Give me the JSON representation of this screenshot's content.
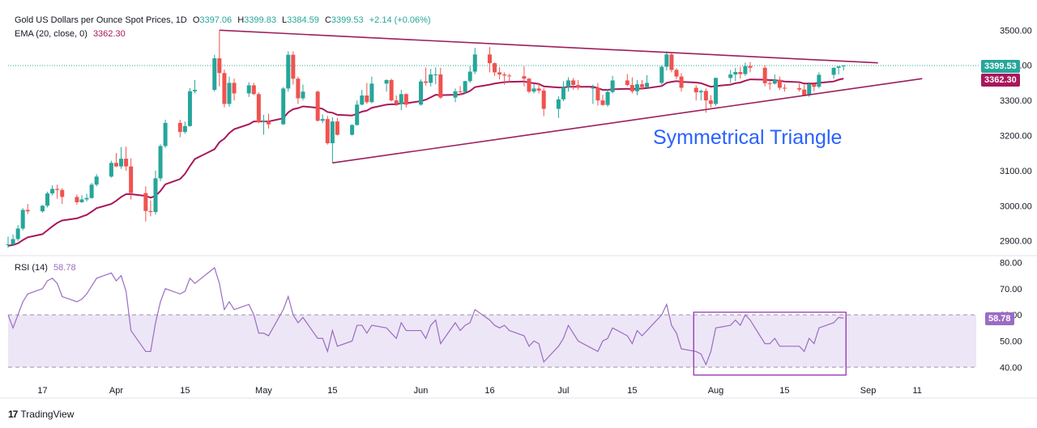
{
  "header": {
    "symbol": "Gold US Dollars per Ounce Spot Prices, 1D",
    "open_label": "O",
    "open": "3397.06",
    "high_label": "H",
    "high": "3399.83",
    "low_label": "L",
    "low": "3384.59",
    "close_label": "C",
    "close": "3399.53",
    "change": "+2.14 (+0.06%)",
    "ema_label": "EMA (20, close, 0)",
    "ema_value": "3362.30",
    "rsi_label": "RSI (14)",
    "rsi_value": "58.78"
  },
  "annotation": "Symmetrical Triangle",
  "brand": {
    "name": "TradingView",
    "logo_icon": "tradingview-logo-icon"
  },
  "colors": {
    "up": "#26a69a",
    "down": "#ef5350",
    "ema": "#a8175a",
    "trend": "#9c1f5b",
    "rsi": "#9b6cc3",
    "rsi_band": "#ede6f6",
    "annotation": "#2962ff",
    "price_tag": "#26a69a"
  },
  "price_axis_labels": [
    "3500.00",
    "3400.00",
    "3300.00",
    "3200.00",
    "3100.00",
    "3000.00",
    "2900.00"
  ],
  "rsi_axis_labels": [
    "80.00",
    "70.00",
    "60.00",
    "50.00",
    "40.00"
  ],
  "time_axis_labels": [
    "17",
    "Apr",
    "15",
    "May",
    "15",
    "Jun",
    "16",
    "Jul",
    "15",
    "Aug",
    "15",
    "Sep",
    "11"
  ],
  "chart_data": [
    {
      "type": "candlestick",
      "title": "Gold US Dollars per Ounce Spot Prices, 1D",
      "ylim": [
        2860,
        3540
      ],
      "x_start": "2025-03-10",
      "x": [
        "2025-03-10",
        "2025-03-11",
        "2025-03-12",
        "2025-03-13",
        "2025-03-14",
        "2025-03-17",
        "2025-03-18",
        "2025-03-19",
        "2025-03-20",
        "2025-03-21",
        "2025-03-24",
        "2025-03-25",
        "2025-03-26",
        "2025-03-27",
        "2025-03-28",
        "2025-03-31",
        "2025-04-01",
        "2025-04-02",
        "2025-04-03",
        "2025-04-04",
        "2025-04-07",
        "2025-04-08",
        "2025-04-09",
        "2025-04-10",
        "2025-04-11",
        "2025-04-14",
        "2025-04-15",
        "2025-04-16",
        "2025-04-17",
        "2025-04-21",
        "2025-04-22",
        "2025-04-23",
        "2025-04-24",
        "2025-04-25",
        "2025-04-28",
        "2025-04-29",
        "2025-04-30",
        "2025-05-01",
        "2025-05-02",
        "2025-05-05",
        "2025-05-06",
        "2025-05-07",
        "2025-05-08",
        "2025-05-09",
        "2025-05-12",
        "2025-05-13",
        "2025-05-14",
        "2025-05-15",
        "2025-05-16",
        "2025-05-19",
        "2025-05-20",
        "2025-05-21",
        "2025-05-22",
        "2025-05-23",
        "2025-05-26",
        "2025-05-27",
        "2025-05-28",
        "2025-05-29",
        "2025-05-30",
        "2025-06-02",
        "2025-06-03",
        "2025-06-04",
        "2025-06-05",
        "2025-06-06",
        "2025-06-09",
        "2025-06-10",
        "2025-06-11",
        "2025-06-12",
        "2025-06-13",
        "2025-06-16",
        "2025-06-17",
        "2025-06-18",
        "2025-06-19",
        "2025-06-20",
        "2025-06-23",
        "2025-06-24",
        "2025-06-25",
        "2025-06-26",
        "2025-06-27",
        "2025-06-30",
        "2025-07-01",
        "2025-07-02",
        "2025-07-03",
        "2025-07-04",
        "2025-07-07",
        "2025-07-08",
        "2025-07-09",
        "2025-07-10",
        "2025-07-11",
        "2025-07-14",
        "2025-07-15",
        "2025-07-16",
        "2025-07-17",
        "2025-07-18",
        "2025-07-21",
        "2025-07-22",
        "2025-07-23",
        "2025-07-24",
        "2025-07-25",
        "2025-07-28",
        "2025-07-29",
        "2025-07-30",
        "2025-07-31",
        "2025-08-01",
        "2025-08-04",
        "2025-08-05",
        "2025-08-06",
        "2025-08-07",
        "2025-08-08",
        "2025-08-11",
        "2025-08-12",
        "2025-08-13",
        "2025-08-14",
        "2025-08-15",
        "2025-08-18",
        "2025-08-19",
        "2025-08-20",
        "2025-08-21",
        "2025-08-22",
        "2025-08-25",
        "2025-08-26",
        "2025-08-27"
      ],
      "open": [
        2888,
        2890,
        2905,
        2935,
        2988,
        2984,
        3000,
        3035,
        3048,
        3045,
        3025,
        3010,
        3018,
        3022,
        3060,
        3083,
        3122,
        3112,
        3134,
        3112,
        3036,
        2985,
        2982,
        3078,
        3170,
        3236,
        3210,
        3227,
        3326,
        3330,
        3420,
        3378,
        3290,
        3350,
        3320,
        3343,
        3318,
        3238,
        3241,
        3232,
        3334,
        3430,
        3362,
        3306,
        3325,
        3242,
        3247,
        3178,
        3240,
        3202,
        3230,
        3288,
        3314,
        3295,
        3348,
        3358,
        3300,
        3290,
        3318,
        3288,
        3354,
        3350,
        3374,
        3374,
        3308,
        3326,
        3324,
        3355,
        3382,
        3431,
        3406,
        3380,
        3374,
        3371,
        3369,
        3362,
        3325,
        3334,
        3328,
        3276,
        3303,
        3338,
        3357,
        3344,
        3336,
        3336,
        3300,
        3287,
        3324,
        3357,
        3344,
        3326,
        3346,
        3338,
        3350,
        3396,
        3431,
        3387,
        3368,
        3336,
        3323,
        3327,
        3300,
        3290,
        3364,
        3374,
        3381,
        3375,
        3398,
        3393,
        3349,
        3348,
        3359,
        3336,
        3335,
        3331,
        3315,
        3346,
        3339,
        3373,
        3393,
        3397
      ],
      "high": [
        2912,
        2918,
        2945,
        2993,
        3005,
        3002,
        3040,
        3058,
        3060,
        3050,
        3032,
        3030,
        3034,
        3065,
        3090,
        3128,
        3150,
        3167,
        3168,
        3135,
        3055,
        3015,
        3100,
        3175,
        3245,
        3245,
        3240,
        3335,
        3358,
        3430,
        3500,
        3388,
        3368,
        3362,
        3352,
        3350,
        3323,
        3259,
        3262,
        3338,
        3440,
        3440,
        3368,
        3345,
        3328,
        3260,
        3256,
        3252,
        3250,
        3232,
        3300,
        3330,
        3350,
        3368,
        3360,
        3362,
        3314,
        3330,
        3320,
        3360,
        3394,
        3390,
        3394,
        3393,
        3334,
        3341,
        3356,
        3398,
        3450,
        3452,
        3408,
        3395,
        3380,
        3376,
        3397,
        3364,
        3348,
        3350,
        3335,
        3312,
        3355,
        3366,
        3364,
        3358,
        3345,
        3350,
        3316,
        3331,
        3370,
        3375,
        3366,
        3358,
        3358,
        3372,
        3400,
        3440,
        3438,
        3392,
        3378,
        3343,
        3331,
        3334,
        3315,
        3365,
        3387,
        3393,
        3396,
        3408,
        3410,
        3400,
        3358,
        3374,
        3368,
        3346,
        3348,
        3345,
        3352,
        3348,
        3380,
        3394,
        3398,
        3400
      ],
      "low": [
        2880,
        2885,
        2900,
        2930,
        2976,
        2980,
        2995,
        3030,
        3020,
        3005,
        3003,
        3008,
        3012,
        3020,
        3055,
        3080,
        3110,
        3105,
        3100,
        3018,
        2955,
        2970,
        2975,
        3070,
        3165,
        3195,
        3205,
        3225,
        3320,
        3325,
        3340,
        3280,
        3282,
        3300,
        3310,
        3315,
        3235,
        3202,
        3220,
        3230,
        3325,
        3345,
        3290,
        3300,
        3240,
        3235,
        3174,
        3122,
        3200,
        3200,
        3228,
        3286,
        3290,
        3292,
        3325,
        3297,
        3284,
        3272,
        3280,
        3285,
        3342,
        3340,
        3346,
        3305,
        3295,
        3315,
        3318,
        3350,
        3375,
        3380,
        3370,
        3360,
        3345,
        3350,
        3340,
        3320,
        3320,
        3320,
        3255,
        3250,
        3298,
        3325,
        3330,
        3330,
        3290,
        3285,
        3285,
        3282,
        3320,
        3340,
        3320,
        3315,
        3330,
        3336,
        3345,
        3385,
        3380,
        3360,
        3325,
        3300,
        3300,
        3265,
        3280,
        3285,
        3350,
        3355,
        3362,
        3370,
        3380,
        3340,
        3330,
        3345,
        3330,
        3325,
        3325,
        3315,
        3310,
        3326,
        3334,
        3362,
        3374,
        3385
      ],
      "close": [
        2890,
        2905,
        2935,
        2988,
        2984,
        3000,
        3035,
        3048,
        3045,
        3025,
        3010,
        3018,
        3022,
        3060,
        3083,
        3122,
        3112,
        3134,
        3112,
        3036,
        2985,
        2982,
        3078,
        3170,
        3236,
        3210,
        3227,
        3326,
        3330,
        3420,
        3378,
        3290,
        3350,
        3320,
        3343,
        3318,
        3238,
        3241,
        3232,
        3334,
        3430,
        3362,
        3306,
        3325,
        3242,
        3247,
        3178,
        3240,
        3202,
        3230,
        3288,
        3314,
        3295,
        3348,
        3358,
        3300,
        3290,
        3318,
        3288,
        3354,
        3350,
        3374,
        3374,
        3308,
        3326,
        3324,
        3355,
        3382,
        3431,
        3406,
        3380,
        3374,
        3371,
        3369,
        3362,
        3325,
        3334,
        3328,
        3276,
        3303,
        3338,
        3357,
        3344,
        3336,
        3336,
        3300,
        3287,
        3324,
        3357,
        3344,
        3326,
        3346,
        3338,
        3350,
        3396,
        3431,
        3387,
        3368,
        3336,
        3323,
        3327,
        3300,
        3290,
        3364,
        3374,
        3381,
        3375,
        3398,
        3393,
        3349,
        3348,
        3359,
        3336,
        3335,
        3331,
        3315,
        3346,
        3339,
        3373,
        3393,
        3397,
        3399.53
      ]
    },
    {
      "type": "line",
      "title": "EMA (20, close, 0)",
      "series": [
        {
          "name": "EMA (20, close, 0)",
          "values": [
            2886,
            2888,
            2893,
            2902,
            2910,
            2919,
            2930,
            2941,
            2951,
            2958,
            2964,
            2969,
            2974,
            2983,
            2993,
            3005,
            3014,
            3025,
            3033,
            3033,
            3028,
            3023,
            3028,
            3042,
            3061,
            3076,
            3091,
            3113,
            3133,
            3161,
            3181,
            3191,
            3207,
            3218,
            3232,
            3240,
            3240,
            3240,
            3240,
            3249,
            3266,
            3275,
            3278,
            3283,
            3279,
            3276,
            3267,
            3265,
            3259,
            3257,
            3262,
            3268,
            3271,
            3279,
            3288,
            3289,
            3289,
            3292,
            3292,
            3298,
            3302,
            3309,
            3316,
            3315,
            3316,
            3317,
            3321,
            3327,
            3338,
            3345,
            3348,
            3350,
            3352,
            3353,
            3354,
            3351,
            3349,
            3347,
            3340,
            3337,
            3337,
            3339,
            3339,
            3339,
            3339,
            3335,
            3330,
            3330,
            3332,
            3333,
            3332,
            3333,
            3334,
            3335,
            3341,
            3350,
            3353,
            3355,
            3353,
            3351,
            3349,
            3344,
            3339,
            3341,
            3345,
            3349,
            3351,
            3356,
            3360,
            3359,
            3358,
            3358,
            3356,
            3354,
            3352,
            3348,
            3348,
            3348,
            3350,
            3354,
            3359,
            3362.3
          ]
        }
      ]
    },
    {
      "type": "line",
      "title": "RSI (14)",
      "ylim": [
        35,
        82
      ],
      "series": [
        {
          "name": "RSI (14)",
          "values": [
            60,
            55,
            60,
            65,
            68,
            70,
            73,
            74,
            72,
            67,
            65,
            66,
            68,
            71,
            74,
            76,
            73,
            75,
            69,
            54,
            46,
            46,
            57,
            65,
            70,
            68,
            69,
            74,
            72,
            78,
            72,
            62,
            65,
            62,
            64,
            60,
            53,
            53,
            52,
            62,
            67,
            60,
            57,
            59,
            51,
            51,
            46,
            54,
            48,
            50,
            56,
            56,
            53,
            56,
            55,
            53,
            51,
            57,
            54,
            54,
            51,
            56,
            58,
            49,
            57,
            54,
            56,
            57,
            62,
            58,
            56,
            55,
            56,
            54,
            52,
            48,
            50,
            49,
            42,
            48,
            51,
            56,
            53,
            50,
            47,
            46,
            50,
            51,
            55,
            52,
            49,
            54,
            52,
            54,
            60,
            64,
            56,
            53,
            47,
            46,
            45,
            41,
            46,
            55,
            56,
            58,
            56,
            60,
            58,
            49,
            49,
            51,
            48,
            48,
            48,
            46,
            51,
            49,
            55,
            57,
            59,
            58.78
          ]
        }
      ],
      "levels": [
        60,
        40
      ]
    }
  ]
}
